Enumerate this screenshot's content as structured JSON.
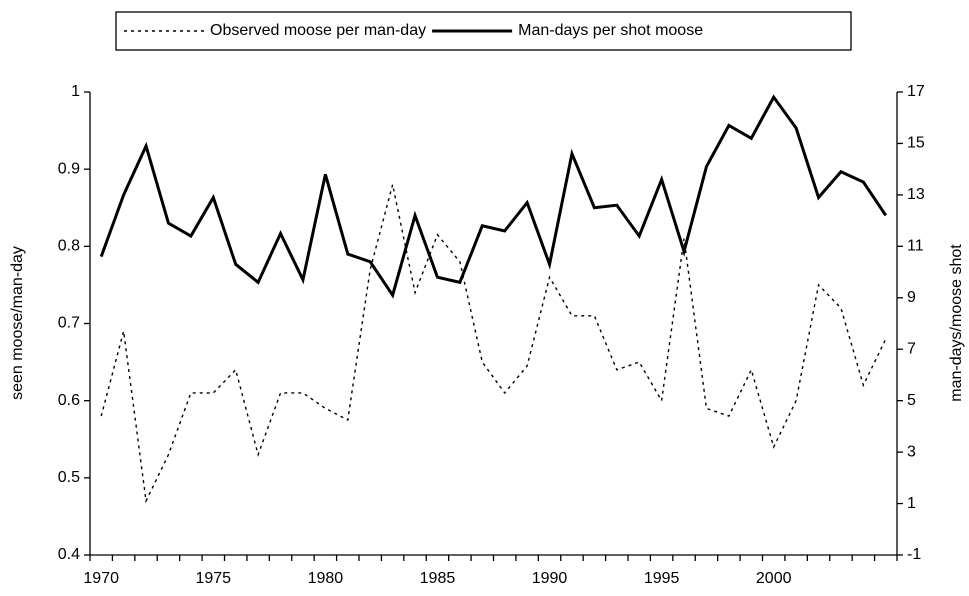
{
  "chart_data": {
    "type": "line",
    "categories": [
      "1970",
      null,
      null,
      null,
      null,
      "1975",
      null,
      null,
      null,
      null,
      "1980",
      null,
      null,
      null,
      null,
      "1985",
      null,
      null,
      null,
      null,
      "1990",
      null,
      null,
      null,
      null,
      "1995",
      null,
      null,
      null,
      null,
      "2000",
      null,
      null,
      null,
      null,
      null
    ],
    "y_label": "seen moose/man-day",
    "y2_label": "man-days/moose shot",
    "ylim": [
      0.4,
      1
    ],
    "yticks": [
      0.4,
      0.5,
      0.6,
      0.7,
      0.8,
      0.9,
      1
    ],
    "y2lim": [
      -1,
      17
    ],
    "y2ticks": [
      -1,
      1,
      3,
      5,
      7,
      9,
      11,
      13,
      15,
      17
    ],
    "legend": "top",
    "series": [
      {
        "name": "Observed moose per man-day",
        "color": "#000000",
        "line_style": "dotted",
        "axis": "y",
        "values": [
          0.58,
          0.69,
          0.47,
          0.53,
          0.61,
          0.61,
          0.64,
          0.53,
          0.61,
          0.61,
          0.59,
          0.575,
          0.77,
          0.88,
          0.74,
          0.815,
          0.78,
          0.65,
          0.61,
          0.645,
          0.76,
          0.71,
          0.71,
          0.64,
          0.65,
          0.6,
          0.81,
          0.59,
          0.58,
          0.64,
          0.54,
          0.6,
          0.75,
          0.72,
          0.62,
          0.68
        ]
      },
      {
        "name": "Man-days per shot moose",
        "color": "#000000",
        "line_style": "solid",
        "axis": "y2",
        "values": [
          10.6,
          13.0,
          14.9,
          11.9,
          11.4,
          12.9,
          10.3,
          9.6,
          11.5,
          9.7,
          13.8,
          10.7,
          10.4,
          9.1,
          12.2,
          9.8,
          9.6,
          11.8,
          11.6,
          12.7,
          10.3,
          14.6,
          12.5,
          12.6,
          11.4,
          13.6,
          10.8,
          14.1,
          15.7,
          15.2,
          16.8,
          15.6,
          12.9,
          13.9,
          13.5,
          12.2
        ]
      }
    ]
  }
}
